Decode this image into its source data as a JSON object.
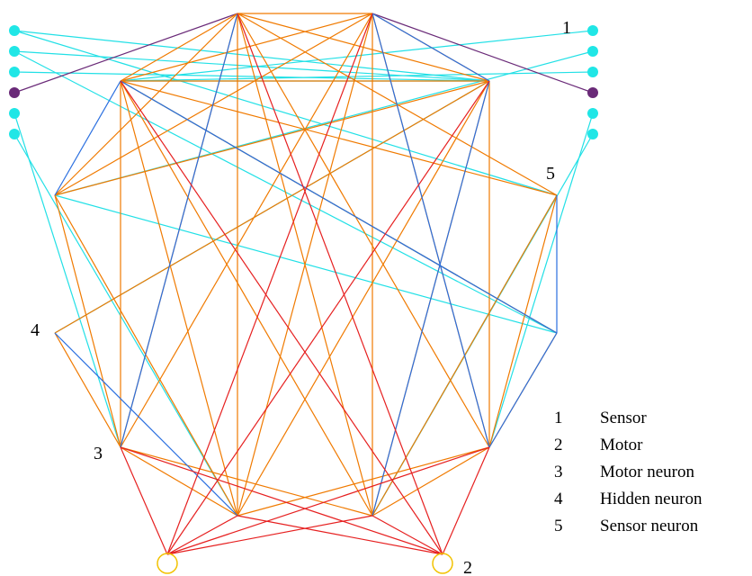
{
  "diagram": {
    "colors": {
      "cyan": "#22e0e6",
      "orange": "#f07a00",
      "red": "#e62020",
      "blue": "#2a6fe0",
      "purple": "#6a2a78",
      "sensor_cyan": "#20e6e6",
      "sensor_purple": "#6a2a78",
      "motor_yellow": "#f2c200",
      "text": "#000000"
    },
    "node_labels": [
      "1",
      "5",
      "4",
      "3",
      "2"
    ],
    "legend": [
      {
        "num": "1",
        "label": "Sensor"
      },
      {
        "num": "2",
        "label": "Motor"
      },
      {
        "num": "3",
        "label": "Motor neuron"
      },
      {
        "num": "4",
        "label": "Hidden neuron"
      },
      {
        "num": "5",
        "label": "Sensor neuron"
      }
    ]
  }
}
